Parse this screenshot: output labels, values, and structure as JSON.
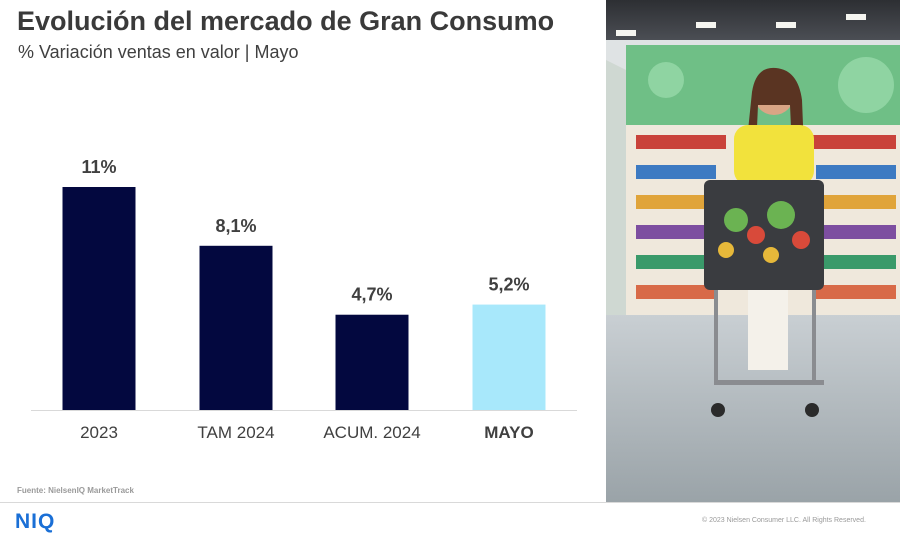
{
  "header": {
    "title": "Evolución del mercado de Gran Consumo",
    "subtitle": "% Variación ventas en valor | Mayo"
  },
  "chart_data": {
    "type": "bar",
    "categories": [
      "2023",
      "TAM 2024",
      "ACUM. 2024",
      "MAYO"
    ],
    "values": [
      11,
      8.1,
      4.7,
      5.2
    ],
    "data_labels": [
      "11%",
      "8,1%",
      "4,7%",
      "5,2%"
    ],
    "title": "Evolución del mercado de Gran Consumo",
    "subtitle": "% Variación ventas en valor | Mayo",
    "xlabel": "",
    "ylabel": "",
    "ylim": [
      0,
      11
    ],
    "grid": false,
    "highlight_category": "MAYO",
    "colors": {
      "bar": "#03083f",
      "highlight": "#a8e8fb",
      "baseline": "#d9d9d9"
    }
  },
  "footer": {
    "source": "Fuente: NielsenIQ MarketTrack",
    "logo": "NIQ",
    "copyright": "© 2023 Nielsen Consumer LLC. All Rights Reserved."
  },
  "photo": {
    "icon": "supermarket-shopper-photo"
  }
}
